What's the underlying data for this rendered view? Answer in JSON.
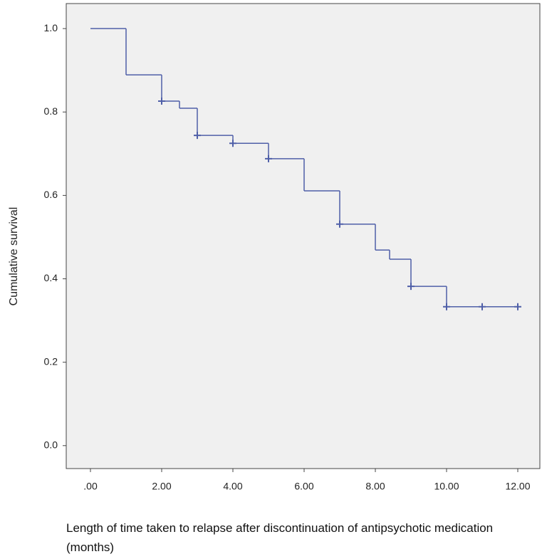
{
  "chart_data": {
    "type": "survival",
    "ylabel": "Cumulative survival",
    "xlabel": "Length of time taken to relapse after discontinuation of antipsychotic medication (months)",
    "xlim": [
      -0.68,
      12.62
    ],
    "ylim": [
      -0.055,
      1.06
    ],
    "xticks": [
      {
        "value": 0,
        "label": ".00"
      },
      {
        "value": 2,
        "label": "2.00"
      },
      {
        "value": 4,
        "label": "4.00"
      },
      {
        "value": 6,
        "label": "6.00"
      },
      {
        "value": 8,
        "label": "8.00"
      },
      {
        "value": 10,
        "label": "10.00"
      },
      {
        "value": 12,
        "label": "12.00"
      }
    ],
    "yticks": [
      {
        "value": 0,
        "label": "0.0"
      },
      {
        "value": 0.2,
        "label": "0.2"
      },
      {
        "value": 0.4,
        "label": "0.4"
      },
      {
        "value": 0.6,
        "label": "0.6"
      },
      {
        "value": 0.8,
        "label": "0.8"
      },
      {
        "value": 1,
        "label": "1.0"
      }
    ],
    "color": "#4f5fa8",
    "x": [
      0,
      1,
      2,
      2.5,
      3,
      4,
      5,
      6,
      7,
      8,
      8.4,
      9,
      10,
      12
    ],
    "values": [
      1,
      0.889,
      0.826,
      0.809,
      0.744,
      0.725,
      0.688,
      0.611,
      0.531,
      0.469,
      0.447,
      0.382,
      0.333,
      0.333
    ],
    "censored": {
      "x": [
        2,
        3,
        4,
        5,
        7,
        9,
        10,
        11,
        12
      ],
      "values": [
        0.826,
        0.744,
        0.725,
        0.688,
        0.531,
        0.382,
        0.333,
        0.333,
        0.333
      ]
    }
  }
}
